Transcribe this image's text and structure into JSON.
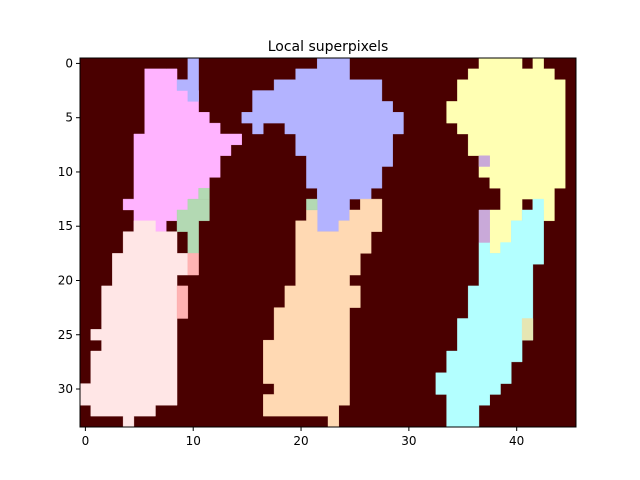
{
  "chart_data": {
    "type": "heatmap",
    "title": "Local superpixels",
    "xlabel": "",
    "ylabel": "",
    "xlim": [
      -0.5,
      45.5
    ],
    "ylim": [
      33.5,
      -0.5
    ],
    "xticks": [
      0,
      10,
      20,
      30,
      40
    ],
    "yticks": [
      0,
      5,
      10,
      15,
      20,
      25,
      30
    ],
    "grid": false,
    "legend": "none",
    "background_color": "#4a0000",
    "regions": [
      {
        "color": "#ffb3ff",
        "polygon": [
          [
            8,
            1
          ],
          [
            9,
            1
          ],
          [
            9,
            2
          ],
          [
            10,
            2
          ],
          [
            10,
            3
          ],
          [
            11,
            3
          ],
          [
            11,
            5
          ],
          [
            12,
            5
          ],
          [
            12,
            6
          ],
          [
            13,
            6
          ],
          [
            13,
            7
          ],
          [
            15,
            7
          ],
          [
            15,
            8
          ],
          [
            14,
            8
          ],
          [
            14,
            9
          ],
          [
            13,
            9
          ],
          [
            13,
            11
          ],
          [
            12,
            11
          ],
          [
            12,
            12
          ],
          [
            11,
            12
          ],
          [
            11,
            13
          ],
          [
            10,
            13
          ],
          [
            10,
            14
          ],
          [
            9,
            14
          ],
          [
            9,
            15
          ],
          [
            8,
            15
          ],
          [
            8,
            16
          ],
          [
            5,
            16
          ],
          [
            5,
            14
          ],
          [
            4,
            14
          ],
          [
            4,
            13
          ],
          [
            5,
            13
          ],
          [
            5,
            7
          ],
          [
            6,
            7
          ],
          [
            6,
            1
          ]
        ]
      },
      {
        "color": "#b3b3ff",
        "polygon": [
          [
            10,
            0
          ],
          [
            11,
            0
          ],
          [
            11,
            4
          ],
          [
            10,
            4
          ],
          [
            10,
            3
          ],
          [
            9,
            3
          ],
          [
            9,
            2
          ],
          [
            10,
            2
          ]
        ]
      },
      {
        "color": "#b3b3ff",
        "polygon": [
          [
            22,
            0
          ],
          [
            25,
            0
          ],
          [
            25,
            2
          ],
          [
            28,
            2
          ],
          [
            28,
            4
          ],
          [
            29,
            4
          ],
          [
            29,
            5
          ],
          [
            30,
            5
          ],
          [
            30,
            7
          ],
          [
            29,
            7
          ],
          [
            29,
            10
          ],
          [
            28,
            10
          ],
          [
            28,
            12
          ],
          [
            27,
            12
          ],
          [
            27,
            13
          ],
          [
            25,
            13
          ],
          [
            25,
            15
          ],
          [
            24,
            15
          ],
          [
            24,
            16
          ],
          [
            22,
            16
          ],
          [
            22,
            12
          ],
          [
            21,
            12
          ],
          [
            21,
            9
          ],
          [
            20,
            9
          ],
          [
            20,
            7
          ],
          [
            19,
            7
          ],
          [
            19,
            6
          ],
          [
            17,
            6
          ],
          [
            17,
            7
          ],
          [
            16,
            7
          ],
          [
            16,
            6
          ],
          [
            15,
            6
          ],
          [
            15,
            5
          ],
          [
            16,
            5
          ],
          [
            16,
            3
          ],
          [
            18,
            3
          ],
          [
            18,
            2
          ],
          [
            20,
            2
          ],
          [
            20,
            1
          ],
          [
            22,
            1
          ]
        ]
      },
      {
        "color": "#ffffb3",
        "polygon": [
          [
            37,
            0
          ],
          [
            41,
            0
          ],
          [
            41,
            1
          ],
          [
            42,
            1
          ],
          [
            42,
            0
          ],
          [
            43,
            0
          ],
          [
            43,
            1
          ],
          [
            44,
            1
          ],
          [
            44,
            2
          ],
          [
            45,
            2
          ],
          [
            45,
            12
          ],
          [
            44,
            12
          ],
          [
            44,
            15
          ],
          [
            43,
            15
          ],
          [
            43,
            14
          ],
          [
            42,
            14
          ],
          [
            42,
            13
          ],
          [
            41,
            13
          ],
          [
            41,
            15
          ],
          [
            40,
            15
          ],
          [
            40,
            17
          ],
          [
            39,
            17
          ],
          [
            39,
            18
          ],
          [
            38,
            18
          ],
          [
            38,
            14
          ],
          [
            39,
            14
          ],
          [
            39,
            12
          ],
          [
            38,
            12
          ],
          [
            38,
            11
          ],
          [
            37,
            11
          ],
          [
            37,
            9
          ],
          [
            36,
            9
          ],
          [
            36,
            7
          ],
          [
            35,
            7
          ],
          [
            35,
            6
          ],
          [
            34,
            6
          ],
          [
            34,
            4
          ],
          [
            35,
            4
          ],
          [
            35,
            2
          ],
          [
            36,
            2
          ],
          [
            36,
            1
          ],
          [
            37,
            1
          ]
        ]
      },
      {
        "color": "#ffe6e6",
        "polygon": [
          [
            5,
            15
          ],
          [
            7,
            15
          ],
          [
            7,
            16
          ],
          [
            9,
            16
          ],
          [
            9,
            18
          ],
          [
            10,
            18
          ],
          [
            10,
            20
          ],
          [
            9,
            20
          ],
          [
            9,
            32
          ],
          [
            7,
            32
          ],
          [
            7,
            33
          ],
          [
            5,
            33
          ],
          [
            5,
            34
          ],
          [
            4,
            34
          ],
          [
            4,
            33
          ],
          [
            1,
            33
          ],
          [
            1,
            32
          ],
          [
            0,
            32
          ],
          [
            0,
            30
          ],
          [
            1,
            30
          ],
          [
            1,
            27
          ],
          [
            2,
            27
          ],
          [
            2,
            26
          ],
          [
            1,
            26
          ],
          [
            1,
            25
          ],
          [
            2,
            25
          ],
          [
            2,
            21
          ],
          [
            3,
            21
          ],
          [
            3,
            18
          ],
          [
            4,
            18
          ],
          [
            4,
            16
          ],
          [
            5,
            16
          ]
        ]
      },
      {
        "color": "#ffd9b3",
        "polygon": [
          [
            26,
            13
          ],
          [
            28,
            13
          ],
          [
            28,
            16
          ],
          [
            27,
            16
          ],
          [
            27,
            18
          ],
          [
            26,
            18
          ],
          [
            26,
            20
          ],
          [
            25,
            20
          ],
          [
            25,
            21
          ],
          [
            26,
            21
          ],
          [
            26,
            23
          ],
          [
            25,
            23
          ],
          [
            25,
            32
          ],
          [
            24,
            32
          ],
          [
            24,
            34
          ],
          [
            23,
            34
          ],
          [
            23,
            33
          ],
          [
            17,
            33
          ],
          [
            17,
            31
          ],
          [
            18,
            31
          ],
          [
            18,
            30
          ],
          [
            17,
            30
          ],
          [
            17,
            26
          ],
          [
            18,
            26
          ],
          [
            18,
            23
          ],
          [
            19,
            23
          ],
          [
            19,
            21
          ],
          [
            20,
            21
          ],
          [
            20,
            15
          ],
          [
            21,
            15
          ],
          [
            21,
            14
          ],
          [
            22,
            14
          ],
          [
            22,
            16
          ],
          [
            24,
            16
          ],
          [
            24,
            15
          ],
          [
            25,
            15
          ],
          [
            25,
            14
          ],
          [
            26,
            14
          ]
        ]
      },
      {
        "color": "#b3ffff",
        "polygon": [
          [
            42,
            13
          ],
          [
            43,
            13
          ],
          [
            43,
            19
          ],
          [
            42,
            19
          ],
          [
            42,
            26
          ],
          [
            41,
            26
          ],
          [
            41,
            28
          ],
          [
            40,
            28
          ],
          [
            40,
            30
          ],
          [
            39,
            30
          ],
          [
            39,
            31
          ],
          [
            38,
            31
          ],
          [
            38,
            32
          ],
          [
            37,
            32
          ],
          [
            37,
            34
          ],
          [
            34,
            34
          ],
          [
            34,
            31
          ],
          [
            33,
            31
          ],
          [
            33,
            29
          ],
          [
            34,
            29
          ],
          [
            34,
            27
          ],
          [
            35,
            27
          ],
          [
            35,
            24
          ],
          [
            36,
            24
          ],
          [
            36,
            21
          ],
          [
            37,
            21
          ],
          [
            37,
            17
          ],
          [
            38,
            17
          ],
          [
            38,
            18
          ],
          [
            39,
            18
          ],
          [
            39,
            17
          ],
          [
            40,
            17
          ],
          [
            40,
            15
          ],
          [
            41,
            15
          ],
          [
            41,
            14
          ],
          [
            42,
            14
          ]
        ]
      },
      {
        "color": "#b3d9b3",
        "polygon": [
          [
            11,
            12
          ],
          [
            12,
            12
          ],
          [
            12,
            13
          ],
          [
            11,
            13
          ]
        ]
      },
      {
        "color": "#b3d9b3",
        "polygon": [
          [
            9,
            14
          ],
          [
            10,
            14
          ],
          [
            10,
            13
          ],
          [
            12,
            13
          ],
          [
            12,
            15
          ],
          [
            11,
            15
          ],
          [
            11,
            18
          ],
          [
            10,
            18
          ],
          [
            10,
            16
          ],
          [
            9,
            16
          ]
        ]
      },
      {
        "color": "#b3d9b3",
        "polygon": [
          [
            21,
            13
          ],
          [
            22,
            13
          ],
          [
            22,
            14
          ],
          [
            21,
            14
          ]
        ]
      },
      {
        "color": "#ffb3b3",
        "polygon": [
          [
            10,
            18
          ],
          [
            11,
            18
          ],
          [
            11,
            20
          ],
          [
            10,
            20
          ]
        ]
      },
      {
        "color": "#ffb3b3",
        "polygon": [
          [
            9,
            21
          ],
          [
            10,
            21
          ],
          [
            10,
            24
          ],
          [
            9,
            24
          ]
        ]
      },
      {
        "color": "#c9a9d9",
        "polygon": [
          [
            37,
            9
          ],
          [
            38,
            9
          ],
          [
            38,
            10
          ],
          [
            37,
            10
          ]
        ]
      },
      {
        "color": "#c9a9d9",
        "polygon": [
          [
            37,
            14
          ],
          [
            38,
            14
          ],
          [
            38,
            17
          ],
          [
            37,
            17
          ]
        ]
      },
      {
        "color": "#e6e6b3",
        "polygon": [
          [
            41,
            24
          ],
          [
            42,
            24
          ],
          [
            42,
            26
          ],
          [
            41,
            26
          ]
        ]
      }
    ]
  }
}
